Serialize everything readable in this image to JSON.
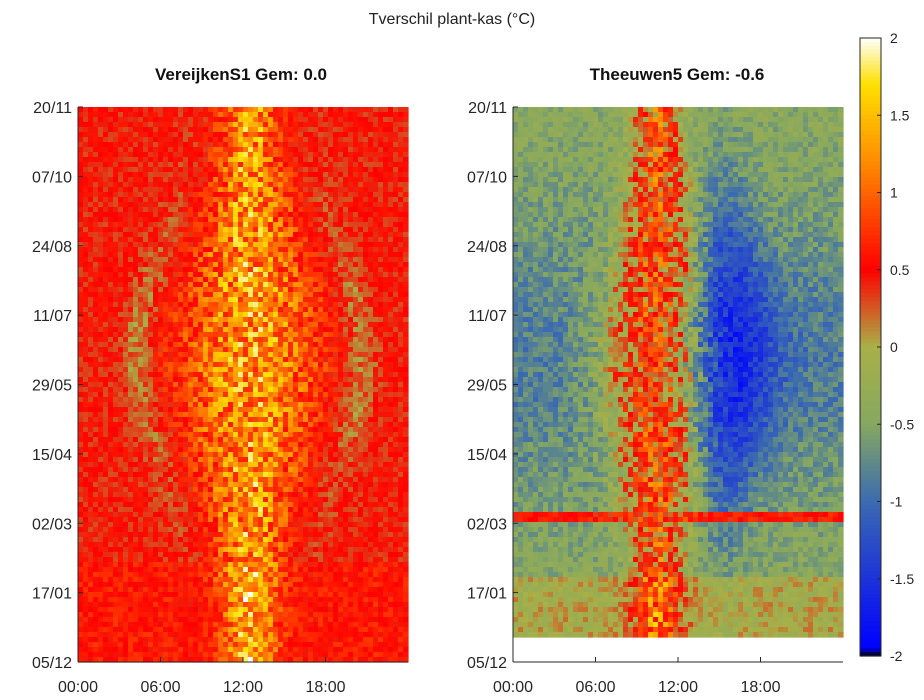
{
  "figure": {
    "suptitle": "Tverschil plant-kas (°C)"
  },
  "colorbar": {
    "min": -2,
    "max": 2,
    "ticks": [
      "2",
      "1.5",
      "1",
      "0.5",
      "0",
      "-0.5",
      "-1",
      "-1.5",
      "-2"
    ],
    "colormap_stops": [
      {
        "value": -2.0,
        "color": "#000000"
      },
      {
        "value": -1.95,
        "color": "#0000ff"
      },
      {
        "value": -1.0,
        "color": "#3b6bb0"
      },
      {
        "value": -0.5,
        "color": "#86a860"
      },
      {
        "value": 0.0,
        "color": "#a8b048"
      },
      {
        "value": 0.5,
        "color": "#ff0000"
      },
      {
        "value": 1.2,
        "color": "#ff8c00"
      },
      {
        "value": 1.7,
        "color": "#ffe000"
      },
      {
        "value": 2.0,
        "color": "#ffffff"
      }
    ]
  },
  "chart_data": [
    {
      "type": "heatmap",
      "title": "VereijkenS1 Gem: 0.0",
      "x_tick_labels": [
        "00:00",
        "06:00",
        "12:00",
        "18:00"
      ],
      "x_ticks_hours": [
        0,
        6,
        12,
        18
      ],
      "xlim_hours": [
        0,
        24
      ],
      "y_tick_labels": [
        "20/11",
        "07/10",
        "24/08",
        "11/07",
        "29/05",
        "15/04",
        "02/03",
        "17/01",
        "05/12"
      ],
      "mean": 0.0,
      "value_model": {
        "night_base": 0.45,
        "day_peak": 1.3,
        "peak_hour": 12.5
      }
    },
    {
      "type": "heatmap",
      "title": "Theeuwen5 Gem: -0.6",
      "x_tick_labels": [
        "00:00",
        "06:00",
        "12:00",
        "18:00"
      ],
      "x_ticks_hours": [
        0,
        6,
        12,
        18
      ],
      "xlim_hours": [
        0,
        24
      ],
      "y_tick_labels": [
        "20/11",
        "07/10",
        "24/08",
        "11/07",
        "29/05",
        "15/04",
        "02/03",
        "17/01",
        "05/12"
      ],
      "mean": -0.6,
      "value_model": {
        "night_base": -0.4,
        "day_peak": 0.7,
        "peak_hour": 10.5,
        "afternoon_low": -1.4
      }
    }
  ]
}
